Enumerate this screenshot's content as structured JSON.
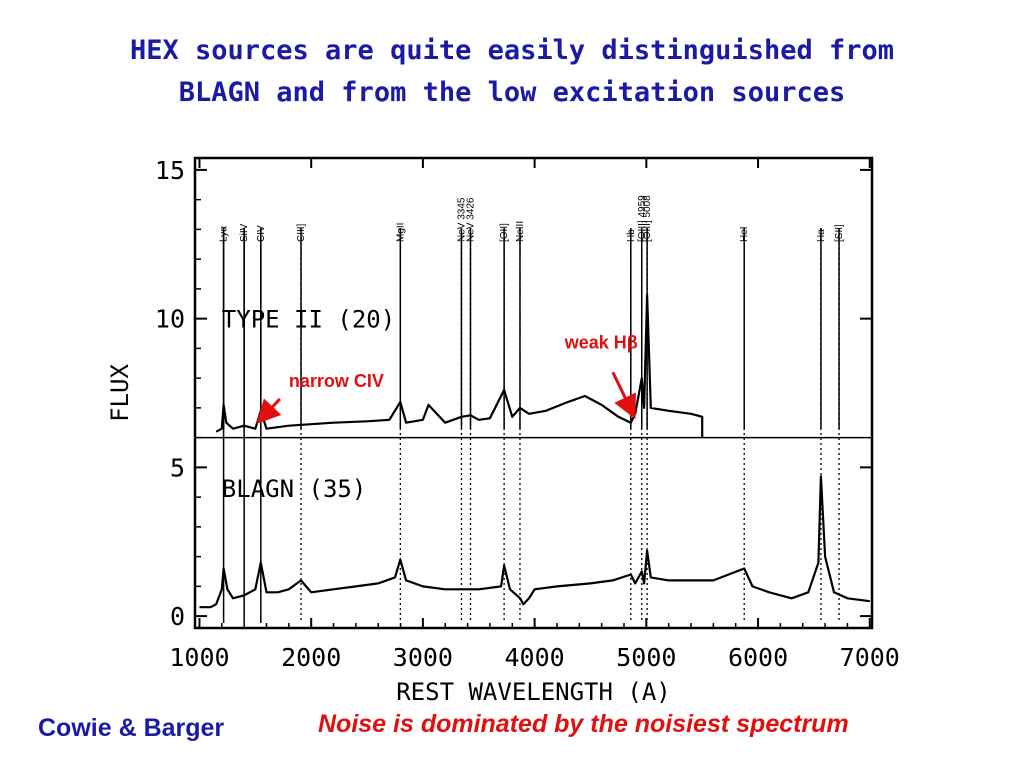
{
  "slide": {
    "title_lines": [
      "HEX sources are quite easily distinguished from",
      "BLAGN and from the low excitation sources"
    ],
    "footer_left": "Cowie & Barger",
    "footer_right": "Noise is dominated by the noisiest spectrum"
  },
  "chart_data": {
    "type": "line",
    "xlabel": "REST WAVELENGTH (A)",
    "ylabel": "FLUX",
    "xlim": [
      960,
      7020
    ],
    "ylim": [
      -0.4,
      15.4
    ],
    "xticks": [
      1000,
      2000,
      3000,
      4000,
      5000,
      6000,
      7000
    ],
    "yticks": [
      0,
      5,
      10,
      15
    ],
    "divider_y": 6.0,
    "line_markers": [
      {
        "label": "Lyα",
        "x": 1216,
        "style": "solid"
      },
      {
        "label": "SiIV",
        "x": 1400,
        "style": "solid"
      },
      {
        "label": "CIV",
        "x": 1549,
        "style": "solid"
      },
      {
        "label": "CIII]",
        "x": 1909,
        "style": "dotted"
      },
      {
        "label": "MgII",
        "x": 2798,
        "style": "dotted"
      },
      {
        "label": "NeV 3345",
        "x": 3345,
        "style": "dotted"
      },
      {
        "label": "NeV 3426",
        "x": 3426,
        "style": "dotted"
      },
      {
        "label": "[OII]",
        "x": 3727,
        "style": "dotted"
      },
      {
        "label": "NeIII",
        "x": 3869,
        "style": "dotted"
      },
      {
        "label": "Hb",
        "x": 4861,
        "style": "dotted"
      },
      {
        "label": "[OIII] 4959",
        "x": 4959,
        "style": "dotted"
      },
      {
        "label": "[OIII] 5008",
        "x": 5007,
        "style": "dotted"
      },
      {
        "label": "HeI",
        "x": 5876,
        "style": "dotted"
      },
      {
        "label": "Ha",
        "x": 6563,
        "style": "dotted"
      },
      {
        "label": "[SII]",
        "x": 6725,
        "style": "dotted"
      }
    ],
    "panel_labels": [
      {
        "text": "TYPE II (20)",
        "x": 1200,
        "y": 9.7
      },
      {
        "text": "BLAGN (35)",
        "x": 1200,
        "y": 4.0
      }
    ],
    "annotations": [
      {
        "text": "narrow CIV",
        "color": "#e01010",
        "text_x": 1800,
        "text_y": 7.7,
        "arrow_from": [
          1720,
          7.3
        ],
        "arrow_to": [
          1545,
          6.6
        ]
      },
      {
        "text": "weak Hβ",
        "color": "#e01010",
        "text_x": 4270,
        "text_y": 9.0,
        "arrow_from": [
          4700,
          8.2
        ],
        "arrow_to": [
          4880,
          6.8
        ]
      }
    ],
    "series": [
      {
        "name": "TYPE II (20)",
        "x": [
          1150,
          1200,
          1216,
          1240,
          1300,
          1400,
          1500,
          1549,
          1600,
          1800,
          2000,
          2200,
          2500,
          2700,
          2798,
          2850,
          3000,
          3050,
          3200,
          3345,
          3426,
          3500,
          3600,
          3727,
          3800,
          3869,
          3950,
          4100,
          4300,
          4450,
          4600,
          4750,
          4861,
          4900,
          4959,
          4980,
          5007,
          5040,
          5200,
          5400,
          5500,
          5500
        ],
        "y": [
          6.2,
          6.3,
          7.1,
          6.5,
          6.3,
          6.4,
          6.3,
          6.9,
          6.3,
          6.4,
          6.45,
          6.5,
          6.55,
          6.6,
          7.2,
          6.5,
          6.6,
          7.1,
          6.5,
          6.7,
          6.75,
          6.6,
          6.65,
          7.6,
          6.7,
          7.0,
          6.8,
          6.9,
          7.2,
          7.4,
          7.1,
          6.7,
          6.5,
          6.8,
          8.0,
          7.0,
          10.8,
          7.0,
          6.9,
          6.8,
          6.7,
          6.0
        ]
      },
      {
        "name": "BLAGN (35)",
        "x": [
          1000,
          1100,
          1150,
          1200,
          1216,
          1250,
          1300,
          1400,
          1500,
          1549,
          1600,
          1700,
          1800,
          1909,
          2000,
          2200,
          2400,
          2600,
          2750,
          2798,
          2850,
          3000,
          3200,
          3500,
          3700,
          3727,
          3780,
          3870,
          3900,
          3950,
          4000,
          4200,
          4500,
          4700,
          4861,
          4900,
          4959,
          4980,
          5007,
          5040,
          5200,
          5400,
          5600,
          5876,
          5950,
          6100,
          6300,
          6450,
          6540,
          6563,
          6600,
          6680,
          6800,
          7000
        ],
        "y": [
          0.3,
          0.3,
          0.4,
          0.9,
          1.6,
          0.9,
          0.6,
          0.7,
          0.9,
          1.8,
          0.8,
          0.8,
          0.9,
          1.2,
          0.8,
          0.9,
          1.0,
          1.1,
          1.3,
          1.9,
          1.2,
          1.0,
          0.9,
          0.9,
          1.0,
          1.7,
          0.9,
          0.6,
          0.4,
          0.6,
          0.9,
          1.0,
          1.1,
          1.2,
          1.4,
          1.1,
          1.5,
          1.1,
          2.2,
          1.3,
          1.2,
          1.2,
          1.2,
          1.6,
          1.0,
          0.8,
          0.6,
          0.8,
          1.8,
          4.7,
          2.0,
          0.8,
          0.6,
          0.5
        ]
      }
    ]
  }
}
